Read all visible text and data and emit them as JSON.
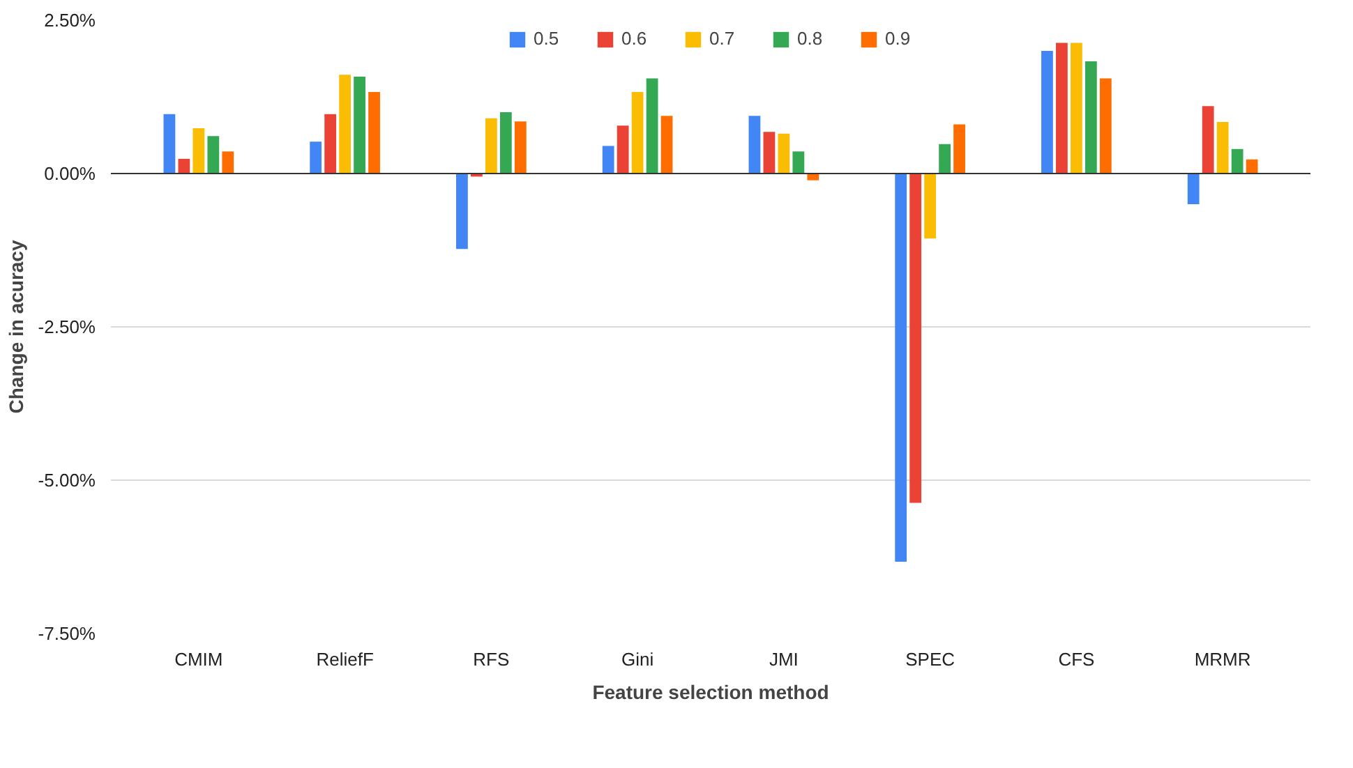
{
  "chart_data": {
    "type": "bar",
    "xlabel": "Feature selection method",
    "ylabel": "Change in acuracy",
    "categories": [
      "CMIM",
      "ReliefF",
      "RFS",
      "Gini",
      "JMI",
      "SPEC",
      "CFS",
      "MRMR"
    ],
    "series": [
      {
        "name": "0.5",
        "color": "#4285f4",
        "values": [
          0.97,
          0.52,
          -1.23,
          0.45,
          0.94,
          -6.33,
          2.0,
          -0.5
        ]
      },
      {
        "name": "0.6",
        "color": "#ea4335",
        "values": [
          0.24,
          0.97,
          -0.05,
          0.78,
          0.68,
          -5.37,
          2.13,
          1.1
        ]
      },
      {
        "name": "0.7",
        "color": "#fbbc04",
        "values": [
          0.74,
          1.61,
          0.9,
          1.33,
          0.65,
          -1.06,
          2.13,
          0.84
        ]
      },
      {
        "name": "0.8",
        "color": "#34a853",
        "values": [
          0.61,
          1.58,
          1.0,
          1.55,
          0.36,
          0.48,
          1.83,
          0.4
        ]
      },
      {
        "name": "0.9",
        "color": "#ff6d01",
        "values": [
          0.36,
          1.33,
          0.85,
          0.94,
          -0.11,
          0.8,
          1.55,
          0.23
        ]
      }
    ],
    "ylim": [
      -7.5,
      2.5
    ],
    "yticks": [
      {
        "value": 2.5,
        "label": "2.50%"
      },
      {
        "value": 0,
        "label": "0.00%"
      },
      {
        "value": -2.5,
        "label": "-2.50%"
      },
      {
        "value": -5,
        "label": "-5.00%"
      },
      {
        "value": -7.5,
        "label": "-7.50%"
      }
    ],
    "grid": "y",
    "legend": "top"
  }
}
